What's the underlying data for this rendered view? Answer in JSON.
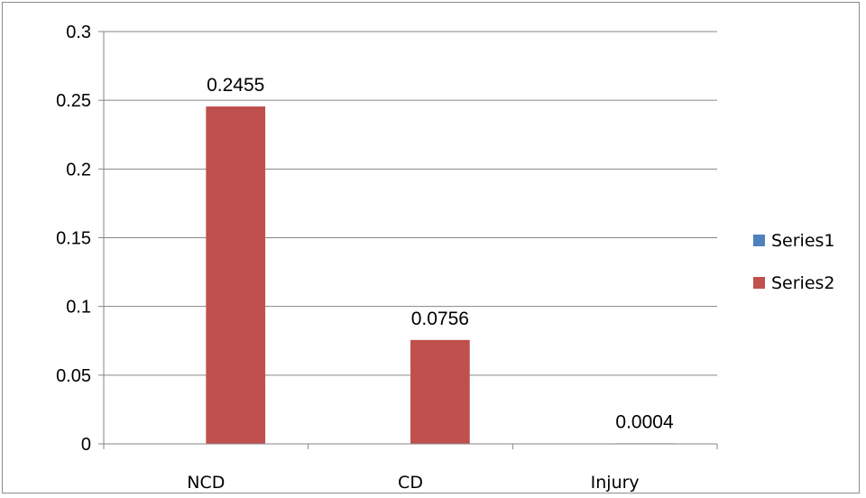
{
  "chart_data": {
    "type": "bar",
    "categories": [
      "NCD",
      "CD",
      "Injury"
    ],
    "series": [
      {
        "name": "Series1",
        "values": [
          0,
          0,
          0
        ],
        "color": "#4f81bd"
      },
      {
        "name": "Series2",
        "values": [
          0.2455,
          0.0756,
          0.0004
        ],
        "color": "#c0504d"
      }
    ],
    "data_labels": [
      "0.2455",
      "0.0756",
      "0.0004"
    ],
    "yticks": [
      "0",
      "0.05",
      "0.1",
      "0.15",
      "0.2",
      "0.25",
      "0.3"
    ],
    "ylim": [
      0,
      0.3
    ],
    "grid": true,
    "legend": "right",
    "title": "",
    "xlabel": "",
    "ylabel": ""
  }
}
